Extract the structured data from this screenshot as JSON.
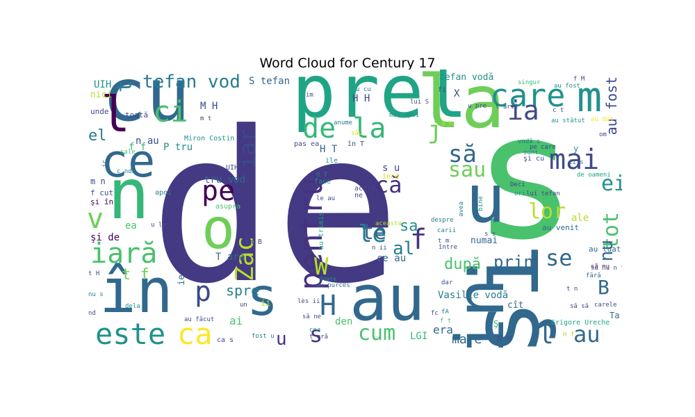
{
  "title": "Word Cloud for Century 17",
  "colors": {
    "c1": "#443983",
    "c2": "#3e4989",
    "c3": "#31688e",
    "c4": "#287d8e",
    "c5": "#21918c",
    "c6": "#20a486",
    "c7": "#35b779",
    "c8": "#4ac16d",
    "c9": "#6ece58",
    "c10": "#b5de2b",
    "c11": "#dde318",
    "c12": "#fde725",
    "c13": "#440154",
    "c14": "#46327e"
  },
  "words": [
    {
      "text": "de",
      "color": "c1"
    },
    {
      "text": "s",
      "color": "c8"
    },
    {
      "text": "şi",
      "color": "c3"
    },
    {
      "text": "cu",
      "color": "c3"
    },
    {
      "text": "prel",
      "color": "c6"
    },
    {
      "text": "la",
      "color": "c9"
    },
    {
      "text": "din",
      "color": "c3"
    },
    {
      "text": "n",
      "color": "c7"
    },
    {
      "text": "u",
      "color": "c3"
    },
    {
      "text": "au",
      "color": "c3"
    },
    {
      "text": "în",
      "color": "c3"
    },
    {
      "text": "o",
      "color": "c9"
    },
    {
      "text": "ce",
      "color": "c3"
    },
    {
      "text": "s",
      "color": "c3"
    },
    {
      "text": "m",
      "color": "c5"
    },
    {
      "text": "l",
      "color": "c13"
    },
    {
      "text": "care",
      "color": "c5"
    },
    {
      "text": "pentru",
      "color": "c14"
    },
    {
      "text": "de la",
      "color": "c7"
    },
    {
      "text": "mai",
      "color": "c2"
    },
    {
      "text": "este",
      "color": "c5"
    },
    {
      "text": "ca",
      "color": "c12"
    },
    {
      "text": "p",
      "color": "c2"
    },
    {
      "text": "iar",
      "color": "c2"
    },
    {
      "text": "ci",
      "color": "c8"
    },
    {
      "text": "ia",
      "color": "c2"
    },
    {
      "text": "pe",
      "color": "c13"
    },
    {
      "text": "Zac",
      "color": "c10"
    },
    {
      "text": "iară",
      "color": "c8"
    },
    {
      "text": "v",
      "color": "c9"
    },
    {
      "text": "H",
      "color": "c3"
    },
    {
      "text": "cum",
      "color": "c8"
    },
    {
      "text": "le",
      "color": "c4"
    },
    {
      "text": "j",
      "color": "c9"
    },
    {
      "text": "să",
      "color": "c3"
    },
    {
      "text": "sau",
      "color": "c9"
    },
    {
      "text": "că",
      "color": "c14"
    },
    {
      "text": "lor",
      "color": "c10"
    },
    {
      "text": "ei",
      "color": "c5"
    },
    {
      "text": "tot",
      "color": "c8"
    },
    {
      "text": "te",
      "color": "c3"
    },
    {
      "text": "f",
      "color": "c14"
    },
    {
      "text": "al",
      "color": "c4"
    },
    {
      "text": "sa",
      "color": "c5"
    },
    {
      "text": "W",
      "color": "c10"
    },
    {
      "text": "după",
      "color": "c8"
    },
    {
      "text": "prin",
      "color": "c3"
    },
    {
      "text": "se",
      "color": "c3"
    },
    {
      "text": "nu",
      "color": "c3"
    },
    {
      "text": "B",
      "color": "c3"
    },
    {
      "text": "au",
      "color": "c3"
    },
    {
      "text": "l",
      "color": "c3"
    },
    {
      "text": "s",
      "color": "c14"
    },
    {
      "text": "u",
      "color": "c14"
    },
    {
      "text": "tefan vod",
      "color": "c4"
    },
    {
      "text": "el",
      "color": "c4"
    },
    {
      "text": "t",
      "color": "c4"
    },
    {
      "text": "au fost",
      "color": "c2"
    },
    {
      "text": "spre",
      "color": "c4"
    },
    {
      "text": "mare",
      "color": "c3"
    },
    {
      "text": "LGI",
      "color": "c7"
    },
    {
      "text": "era",
      "color": "c3"
    },
    {
      "text": "t f",
      "color": "c9"
    },
    {
      "text": "ai",
      "color": "c8"
    },
    {
      "text": "ale",
      "color": "c10"
    },
    {
      "text": "Vasilie vodă",
      "color": "c4"
    },
    {
      "text": "n au",
      "color": "c2"
    },
    {
      "text": "den",
      "color": "c8"
    },
    {
      "text": "s u",
      "color": "c2"
    },
    {
      "text": "H T",
      "color": "c3"
    },
    {
      "text": "M H",
      "color": "c2"
    },
    {
      "text": "H H",
      "color": "c2"
    },
    {
      "text": "tru vod",
      "color": "c3"
    },
    {
      "text": "T ara",
      "color": "c3"
    },
    {
      "text": "ce au",
      "color": "c3"
    },
    {
      "text": "UIH",
      "color": "c5"
    },
    {
      "text": "S tefan",
      "color": "c3"
    },
    {
      "text": "tefan vodă",
      "color": "c5"
    },
    {
      "text": "Miron Costin",
      "color": "c5"
    },
    {
      "text": "Grigore Ureche",
      "color": "c6"
    },
    {
      "text": "au fost",
      "color": "c5"
    },
    {
      "text": "au venit",
      "color": "c3"
    },
    {
      "text": "au luat",
      "color": "c3"
    },
    {
      "text": "au dat",
      "color": "c12"
    },
    {
      "text": "numai",
      "color": "c3"
    },
    {
      "text": "cît",
      "color": "c3"
    },
    {
      "text": "Ta",
      "color": "c3"
    },
    {
      "text": "nici",
      "color": "c10"
    },
    {
      "text": "unde",
      "color": "c2"
    },
    {
      "text": "toată",
      "color": "c2"
    },
    {
      "text": "şi de",
      "color": "c13"
    },
    {
      "text": "ea",
      "color": "c8"
    },
    {
      "text": "f f",
      "color": "c7"
    },
    {
      "text": "P tru",
      "color": "c5"
    },
    {
      "text": "m n",
      "color": "c2"
    },
    {
      "text": "f cut",
      "color": "c2"
    },
    {
      "text": "şi în",
      "color": "c13"
    },
    {
      "text": "apoi",
      "color": "c4"
    },
    {
      "text": "asupra",
      "color": "c8"
    },
    {
      "text": "în B",
      "color": "c2"
    },
    {
      "text": "au trimis",
      "color": "c6"
    },
    {
      "text": "acolo",
      "color": "c2"
    },
    {
      "text": "ne",
      "color": "c2"
    },
    {
      "text": "încă",
      "color": "c11"
    },
    {
      "text": "face",
      "color": "c5"
    },
    {
      "text": "ile",
      "color": "c5"
    },
    {
      "text": "în T",
      "color": "c2"
    },
    {
      "text": "pas ea",
      "color": "c2"
    },
    {
      "text": "anume",
      "color": "c4"
    },
    {
      "text": "sâu",
      "color": "c11"
    },
    {
      "text": "lui S",
      "color": "c2"
    },
    {
      "text": "mai apoi",
      "color": "c5"
    },
    {
      "text": "singur",
      "color": "c7"
    },
    {
      "text": "u pre",
      "color": "c2"
    },
    {
      "text": "pe care",
      "color": "c2"
    },
    {
      "text": "şi cu",
      "color": "c2"
    },
    {
      "text": "vodă s",
      "color": "c4"
    },
    {
      "text": "sunt",
      "color": "c4"
    },
    {
      "text": "bine",
      "color": "c5"
    },
    {
      "text": "avea",
      "color": "c4"
    },
    {
      "text": "de oameni",
      "color": "c6"
    },
    {
      "text": "Deci",
      "color": "c2"
    },
    {
      "text": "lui tefan",
      "color": "c2"
    },
    {
      "text": "ori",
      "color": "c5"
    },
    {
      "text": "despre",
      "color": "c4"
    },
    {
      "text": "carii",
      "color": "c4"
    },
    {
      "text": "între",
      "color": "c2"
    },
    {
      "text": "dar",
      "color": "c2"
    },
    {
      "text": "fără",
      "color": "c3"
    },
    {
      "text": "să nu",
      "color": "c13"
    },
    {
      "text": "să să",
      "color": "c2"
    },
    {
      "text": "carele",
      "color": "c2"
    },
    {
      "text": "au purces",
      "color": "c3"
    },
    {
      "text": "toate",
      "color": "c5"
    },
    {
      "text": "lès ii",
      "color": "c2"
    },
    {
      "text": "să ne",
      "color": "c2"
    },
    {
      "text": "au făcut",
      "color": "c2"
    },
    {
      "text": "fost u",
      "color": "c4"
    },
    {
      "text": "dela",
      "color": "c5"
    },
    {
      "text": "nd",
      "color": "c2"
    },
    {
      "text": "nu s",
      "color": "c4"
    },
    {
      "text": "ca s",
      "color": "c2"
    },
    {
      "text": "cea",
      "color": "c4"
    },
    {
      "text": "t ară",
      "color": "c2"
    },
    {
      "text": "om",
      "color": "c2"
    },
    {
      "text": "sale",
      "color": "c8"
    },
    {
      "text": "c ndu",
      "color": "c4"
    },
    {
      "text": "u la",
      "color": "c2"
    },
    {
      "text": "ie",
      "color": "c3"
    },
    {
      "text": "un",
      "color": "c2"
    },
    {
      "text": "ii",
      "color": "c10"
    },
    {
      "text": "X",
      "color": "c2"
    },
    {
      "text": "fi",
      "color": "c2"
    },
    {
      "text": "im",
      "color": "c2"
    },
    {
      "text": "u cu",
      "color": "c4"
    },
    {
      "text": "O T",
      "color": "c4"
    },
    {
      "text": "aceasta",
      "color": "c10"
    },
    {
      "text": "n ii",
      "color": "c2"
    },
    {
      "text": "le au",
      "color": "c2"
    },
    {
      "text": "fc",
      "color": "c2"
    },
    {
      "text": "fA",
      "color": "c4"
    },
    {
      "text": "Ş",
      "color": "c7"
    },
    {
      "text": "f t",
      "color": "c8"
    },
    {
      "text": "H f",
      "color": "c10"
    },
    {
      "text": "p n",
      "color": "c2"
    },
    {
      "text": "t ării",
      "color": "c2"
    },
    {
      "text": "au stătut",
      "color": "c5"
    },
    {
      "text": "f M",
      "color": "c2"
    },
    {
      "text": "H M",
      "color": "c10"
    },
    {
      "text": "t H",
      "color": "c2"
    },
    {
      "text": "c t",
      "color": "c2"
    },
    {
      "text": "m t",
      "color": "c2"
    },
    {
      "text": "y",
      "color": "c5"
    },
    {
      "text": "ic",
      "color": "c3"
    },
    {
      "text": "UIH",
      "color": "c2"
    },
    {
      "text": "t m",
      "color": "c2"
    },
    {
      "text": "s s",
      "color": "c2"
    },
    {
      "text": "ii s",
      "color": "c4"
    },
    {
      "text": "t n",
      "color": "c2"
    },
    {
      "text": "să nu n t",
      "color": "c2"
    }
  ]
}
